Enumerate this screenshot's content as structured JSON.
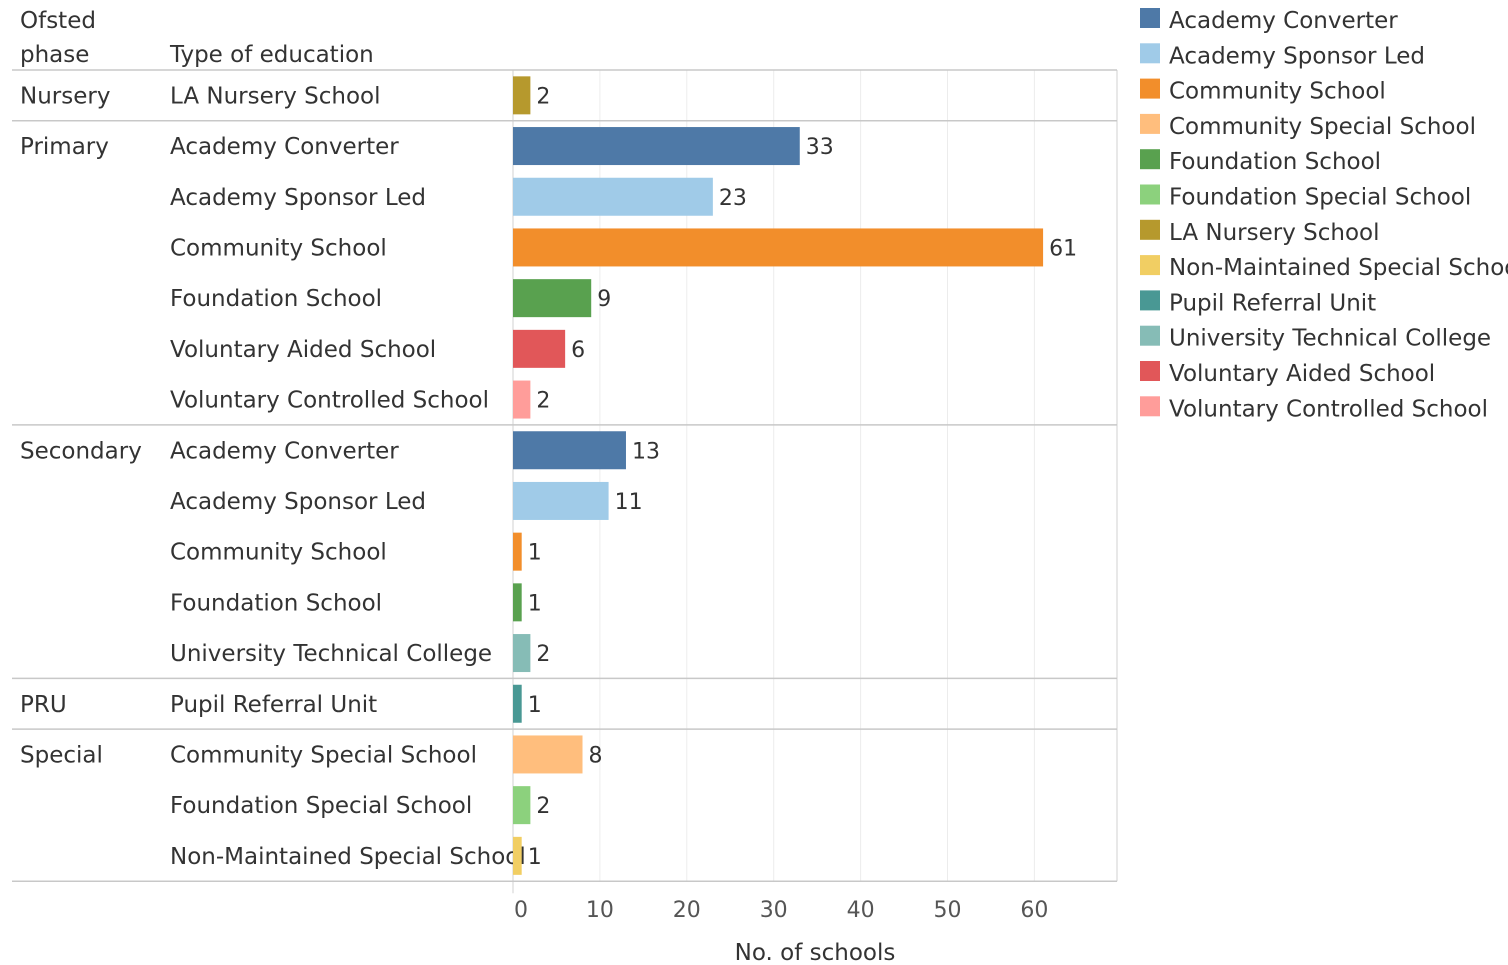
{
  "chart_data": {
    "type": "bar",
    "orientation": "horizontal",
    "header_phase": "Ofsted\nphase",
    "header_type": "Type of education",
    "xlabel": "No. of schools",
    "xlim": [
      0,
      70
    ],
    "xticks": [
      0,
      10,
      20,
      30,
      40,
      50,
      60
    ],
    "grid": true,
    "legend_position": "right",
    "groups": [
      {
        "phase": "Nursery",
        "rows": [
          {
            "type": "LA Nursery School",
            "value": 2
          }
        ]
      },
      {
        "phase": "Primary",
        "rows": [
          {
            "type": "Academy Converter",
            "value": 33
          },
          {
            "type": "Academy Sponsor Led",
            "value": 23
          },
          {
            "type": "Community School",
            "value": 61
          },
          {
            "type": "Foundation School",
            "value": 9
          },
          {
            "type": "Voluntary Aided School",
            "value": 6
          },
          {
            "type": "Voluntary Controlled School",
            "value": 2
          }
        ]
      },
      {
        "phase": "Secondary",
        "rows": [
          {
            "type": "Academy Converter",
            "value": 13
          },
          {
            "type": "Academy Sponsor Led",
            "value": 11
          },
          {
            "type": "Community School",
            "value": 1
          },
          {
            "type": "Foundation School",
            "value": 1
          },
          {
            "type": "University Technical College",
            "value": 2
          }
        ]
      },
      {
        "phase": "PRU",
        "rows": [
          {
            "type": "Pupil Referral Unit",
            "value": 1
          }
        ]
      },
      {
        "phase": "Special",
        "rows": [
          {
            "type": "Community Special School",
            "value": 8
          },
          {
            "type": "Foundation Special School",
            "value": 2
          },
          {
            "type": "Non-Maintained Special School",
            "value": 1
          }
        ]
      }
    ],
    "legend": [
      {
        "name": "Academy Converter",
        "color": "#4e79a7"
      },
      {
        "name": "Academy Sponsor Led",
        "color": "#a0cbe8"
      },
      {
        "name": "Community School",
        "color": "#f28e2b"
      },
      {
        "name": "Community Special School",
        "color": "#ffbe7d"
      },
      {
        "name": "Foundation School",
        "color": "#59a14f"
      },
      {
        "name": "Foundation Special School",
        "color": "#8cd17d"
      },
      {
        "name": "LA Nursery School",
        "color": "#b6992d"
      },
      {
        "name": "Non-Maintained Special School",
        "color": "#f1ce63"
      },
      {
        "name": "Pupil Referral Unit",
        "color": "#499894"
      },
      {
        "name": "University Technical College",
        "color": "#86bcb6"
      },
      {
        "name": "Voluntary Aided School",
        "color": "#e15759"
      },
      {
        "name": "Voluntary Controlled School",
        "color": "#ff9d9a"
      }
    ]
  }
}
